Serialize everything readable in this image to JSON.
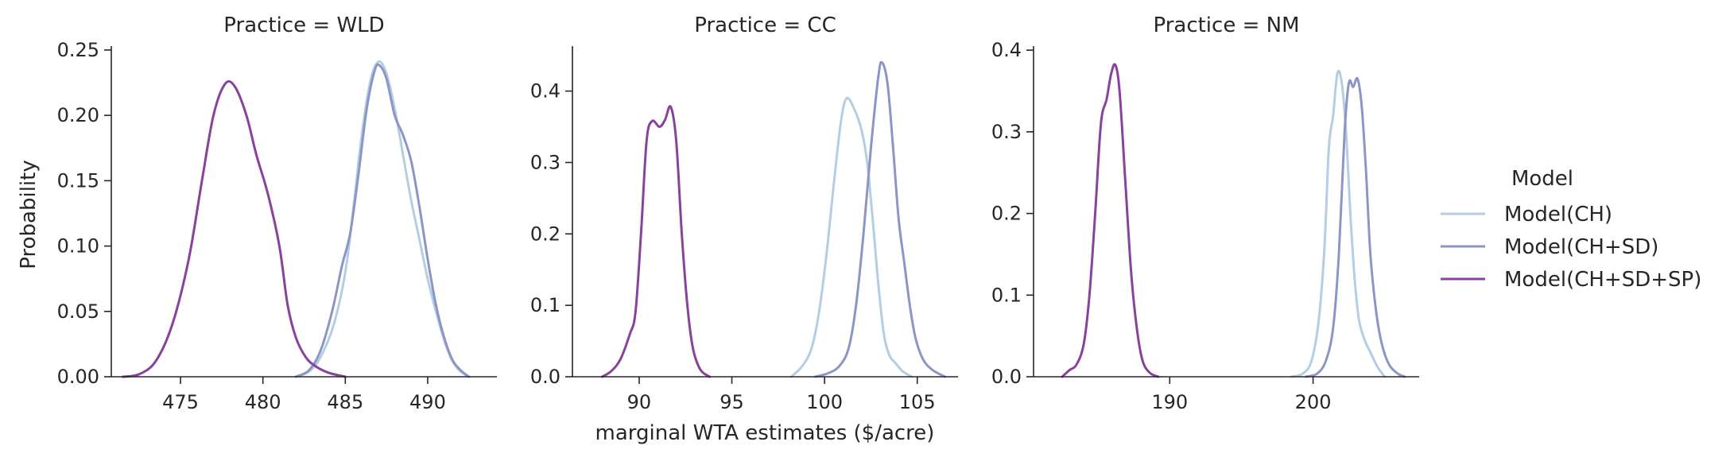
{
  "chart_data": {
    "type": "line",
    "kind": "kde-density-facets",
    "facet_label_template": "Practice = {practice}",
    "xlabel": "marginal WTA estimates ($/acre)",
    "ylabel": "Probability",
    "grid": false,
    "legend": {
      "title": "Model",
      "placement": "right",
      "entries": [
        "Model(CH)",
        "Model(CH+SD)",
        "Model(CH+SD+SP)"
      ]
    },
    "series_colors": {
      "Model(CH)": "#b3cde3",
      "Model(CH+SD)": "#8c96c6",
      "Model(CH+SD+SP)": "#88419d"
    },
    "panels": [
      {
        "practice": "WLD",
        "title": "Practice = WLD",
        "xlim": [
          470.8,
          494.2
        ],
        "ylim": [
          0,
          0.253
        ],
        "xticks": [
          475,
          480,
          485,
          490
        ],
        "yticks": [
          0.0,
          0.05,
          0.1,
          0.15,
          0.2,
          0.25
        ],
        "ytick_labels": [
          "0.00",
          "0.05",
          "0.10",
          "0.15",
          "0.20",
          "0.25"
        ],
        "series": [
          {
            "name": "Model(CH)",
            "points": [
              [
                482.0,
                0.0
              ],
              [
                482.8,
                0.004
              ],
              [
                483.5,
                0.015
              ],
              [
                484.3,
                0.04
              ],
              [
                485.0,
                0.08
              ],
              [
                485.5,
                0.13
              ],
              [
                486.0,
                0.185
              ],
              [
                486.5,
                0.225
              ],
              [
                487.0,
                0.241
              ],
              [
                487.5,
                0.232
              ],
              [
                488.0,
                0.205
              ],
              [
                488.5,
                0.17
              ],
              [
                489.0,
                0.135
              ],
              [
                489.5,
                0.105
              ],
              [
                490.0,
                0.075
              ],
              [
                490.5,
                0.05
              ],
              [
                491.0,
                0.028
              ],
              [
                491.5,
                0.012
              ],
              [
                492.0,
                0.004
              ],
              [
                492.5,
                0.0
              ]
            ]
          },
          {
            "name": "Model(CH+SD)",
            "points": [
              [
                482.0,
                0.0
              ],
              [
                482.8,
                0.005
              ],
              [
                483.5,
                0.02
              ],
              [
                484.2,
                0.05
              ],
              [
                484.8,
                0.085
              ],
              [
                485.3,
                0.11
              ],
              [
                485.8,
                0.155
              ],
              [
                486.3,
                0.205
              ],
              [
                486.8,
                0.235
              ],
              [
                487.1,
                0.238
              ],
              [
                487.5,
                0.228
              ],
              [
                488.0,
                0.2
              ],
              [
                488.5,
                0.185
              ],
              [
                489.0,
                0.165
              ],
              [
                489.5,
                0.13
              ],
              [
                490.0,
                0.09
              ],
              [
                490.5,
                0.055
              ],
              [
                491.0,
                0.03
              ],
              [
                491.5,
                0.013
              ],
              [
                492.0,
                0.005
              ],
              [
                492.5,
                0.0
              ]
            ]
          },
          {
            "name": "Model(CH+SD+SP)",
            "points": [
              [
                471.5,
                0.0
              ],
              [
                472.5,
                0.002
              ],
              [
                473.5,
                0.012
              ],
              [
                474.5,
                0.04
              ],
              [
                475.5,
                0.09
              ],
              [
                476.3,
                0.15
              ],
              [
                477.0,
                0.2
              ],
              [
                477.7,
                0.224
              ],
              [
                478.3,
                0.222
              ],
              [
                479.0,
                0.2
              ],
              [
                479.6,
                0.17
              ],
              [
                480.3,
                0.14
              ],
              [
                481.0,
                0.1
              ],
              [
                481.5,
                0.055
              ],
              [
                482.0,
                0.03
              ],
              [
                482.6,
                0.015
              ],
              [
                483.2,
                0.008
              ],
              [
                484.0,
                0.003
              ],
              [
                485.0,
                0.0
              ]
            ]
          }
        ]
      },
      {
        "practice": "CC",
        "title": "Practice = CC",
        "xlim": [
          86.4,
          107.2
        ],
        "ylim": [
          0,
          0.463
        ],
        "xticks": [
          90,
          95,
          100,
          105
        ],
        "yticks": [
          0.0,
          0.1,
          0.2,
          0.3,
          0.4
        ],
        "ytick_labels": [
          "0.0",
          "0.1",
          "0.2",
          "0.3",
          "0.4"
        ],
        "series": [
          {
            "name": "Model(CH)",
            "points": [
              [
                98.2,
                0.0
              ],
              [
                98.8,
                0.015
              ],
              [
                99.3,
                0.04
              ],
              [
                99.7,
                0.09
              ],
              [
                100.1,
                0.17
              ],
              [
                100.5,
                0.27
              ],
              [
                100.9,
                0.36
              ],
              [
                101.2,
                0.39
              ],
              [
                101.6,
                0.375
              ],
              [
                102.0,
                0.345
              ],
              [
                102.3,
                0.3
              ],
              [
                102.6,
                0.22
              ],
              [
                102.9,
                0.13
              ],
              [
                103.2,
                0.06
              ],
              [
                103.5,
                0.03
              ],
              [
                103.8,
                0.02
              ],
              [
                104.2,
                0.008
              ],
              [
                104.7,
                0.0
              ]
            ]
          },
          {
            "name": "Model(CH+SD)",
            "points": [
              [
                99.5,
                0.0
              ],
              [
                100.2,
                0.005
              ],
              [
                100.8,
                0.015
              ],
              [
                101.3,
                0.04
              ],
              [
                101.7,
                0.1
              ],
              [
                102.1,
                0.2
              ],
              [
                102.5,
                0.32
              ],
              [
                102.9,
                0.42
              ],
              [
                103.1,
                0.44
              ],
              [
                103.4,
                0.41
              ],
              [
                103.7,
                0.32
              ],
              [
                104.0,
                0.22
              ],
              [
                104.3,
                0.16
              ],
              [
                104.6,
                0.1
              ],
              [
                104.9,
                0.055
              ],
              [
                105.3,
                0.025
              ],
              [
                105.8,
                0.01
              ],
              [
                106.5,
                0.0
              ]
            ]
          },
          {
            "name": "Model(CH+SD+SP)",
            "points": [
              [
                88.0,
                0.0
              ],
              [
                88.5,
                0.008
              ],
              [
                89.0,
                0.025
              ],
              [
                89.5,
                0.06
              ],
              [
                89.8,
                0.09
              ],
              [
                90.1,
                0.2
              ],
              [
                90.4,
                0.33
              ],
              [
                90.7,
                0.358
              ],
              [
                91.1,
                0.35
              ],
              [
                91.4,
                0.36
              ],
              [
                91.7,
                0.378
              ],
              [
                92.0,
                0.33
              ],
              [
                92.3,
                0.2
              ],
              [
                92.6,
                0.1
              ],
              [
                92.9,
                0.04
              ],
              [
                93.3,
                0.01
              ],
              [
                93.8,
                0.0
              ]
            ]
          }
        ]
      },
      {
        "practice": "NM",
        "title": "Practice = NM",
        "xlim": [
          180.5,
          207.4
        ],
        "ylim": [
          0,
          0.405
        ],
        "xticks": [
          190,
          200
        ],
        "yticks": [
          0.0,
          0.1,
          0.2,
          0.3,
          0.4
        ],
        "ytick_labels": [
          "0.0",
          "0.1",
          "0.2",
          "0.3",
          "0.4"
        ],
        "series": [
          {
            "name": "Model(CH)",
            "points": [
              [
                198.5,
                0.0
              ],
              [
                199.3,
                0.004
              ],
              [
                199.9,
                0.02
              ],
              [
                200.4,
                0.07
              ],
              [
                200.8,
                0.16
              ],
              [
                201.1,
                0.28
              ],
              [
                201.4,
                0.32
              ],
              [
                201.7,
                0.372
              ],
              [
                202.0,
                0.36
              ],
              [
                202.3,
                0.3
              ],
              [
                202.6,
                0.2
              ],
              [
                202.9,
                0.12
              ],
              [
                203.2,
                0.07
              ],
              [
                203.6,
                0.045
              ],
              [
                204.0,
                0.03
              ],
              [
                204.5,
                0.012
              ],
              [
                205.0,
                0.0
              ]
            ]
          },
          {
            "name": "Model(CH+SD)",
            "points": [
              [
                199.5,
                0.0
              ],
              [
                200.3,
                0.004
              ],
              [
                200.9,
                0.02
              ],
              [
                201.4,
                0.06
              ],
              [
                201.8,
                0.15
              ],
              [
                202.2,
                0.3
              ],
              [
                202.5,
                0.36
              ],
              [
                202.8,
                0.355
              ],
              [
                203.1,
                0.365
              ],
              [
                203.4,
                0.33
              ],
              [
                203.7,
                0.25
              ],
              [
                204.0,
                0.15
              ],
              [
                204.4,
                0.08
              ],
              [
                204.8,
                0.04
              ],
              [
                205.3,
                0.015
              ],
              [
                205.9,
                0.004
              ],
              [
                206.4,
                0.0
              ]
            ]
          },
          {
            "name": "Model(CH+SD+SP)",
            "points": [
              [
                182.5,
                0.0
              ],
              [
                183.0,
                0.008
              ],
              [
                183.5,
                0.015
              ],
              [
                184.0,
                0.04
              ],
              [
                184.4,
                0.1
              ],
              [
                184.8,
                0.2
              ],
              [
                185.2,
                0.31
              ],
              [
                185.6,
                0.34
              ],
              [
                185.9,
                0.37
              ],
              [
                186.2,
                0.382
              ],
              [
                186.5,
                0.35
              ],
              [
                186.9,
                0.24
              ],
              [
                187.3,
                0.13
              ],
              [
                187.7,
                0.06
              ],
              [
                188.1,
                0.02
              ],
              [
                188.6,
                0.005
              ],
              [
                189.2,
                0.0
              ]
            ]
          }
        ]
      }
    ]
  }
}
